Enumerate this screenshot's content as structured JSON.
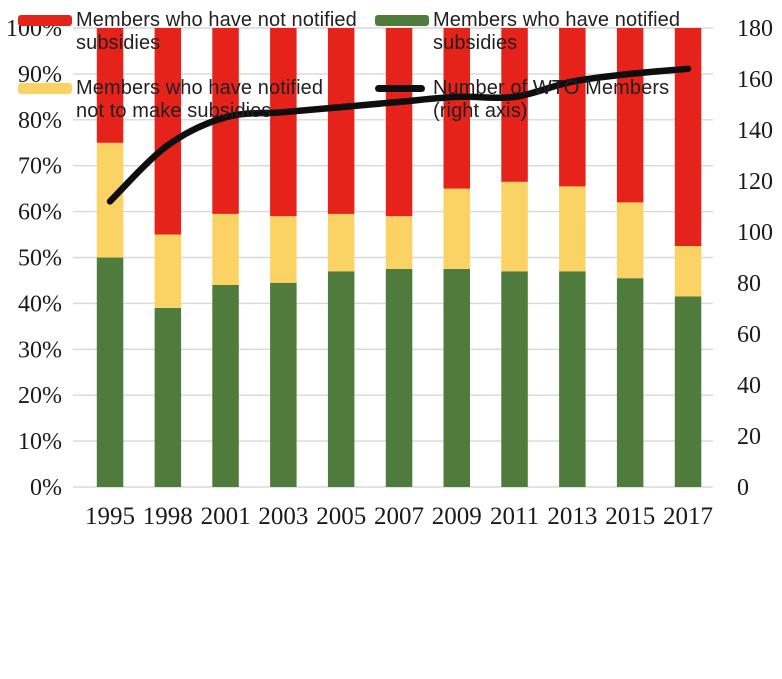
{
  "colors": {
    "red": "#e5231b",
    "yellow": "#fad364",
    "green": "#4f7b3c",
    "line_black": "#0e0e0e",
    "grid": "#d8d8d8",
    "axis_text": "#1a1a1a",
    "legend_text": "#231f20",
    "background": "#ffffff"
  },
  "chart_data": {
    "type": "bar",
    "subtype": "stacked-100pct-with-line-overlay",
    "title": "",
    "xlabel": "",
    "ylabel": "",
    "grid": true,
    "legend_position": "bottom",
    "categories": [
      "1995",
      "1998",
      "2001",
      "2003",
      "2005",
      "2007",
      "2009",
      "2011",
      "2013",
      "2015",
      "2017"
    ],
    "series": [
      {
        "name": "Members who have notified subsidies",
        "color_key": "green",
        "axis": "left",
        "values": [
          50,
          39,
          44,
          44.5,
          47,
          47.5,
          47.5,
          47,
          47,
          45.5,
          41.5
        ]
      },
      {
        "name": "Members who have notified not to make subsidies",
        "color_key": "yellow",
        "axis": "left",
        "values": [
          25,
          16,
          15.5,
          14.5,
          12.5,
          11.5,
          17.5,
          19.5,
          18.5,
          16.5,
          11
        ]
      },
      {
        "name": "Members who have not notified subsidies",
        "color_key": "red",
        "axis": "left",
        "values": [
          25,
          45,
          40.5,
          41,
          40.5,
          41,
          35,
          33.5,
          34.5,
          38,
          47.5
        ]
      }
    ],
    "line_series": {
      "name": "Number of WTO Members (right axis)",
      "color_key": "line_black",
      "axis": "right",
      "values": [
        112,
        134,
        145,
        147,
        149,
        151,
        153,
        153,
        159,
        162,
        164
      ]
    },
    "left_axis": {
      "min": 0,
      "max": 100,
      "step": 10,
      "format": "percent",
      "tick_labels": [
        "100%",
        "90%",
        "80%",
        "70%",
        "60%",
        "50%",
        "40%",
        "30%",
        "20%",
        "10%",
        "0%"
      ]
    },
    "right_axis": {
      "min": 0,
      "max": 180,
      "step": 20,
      "tick_labels": [
        "180",
        "160",
        "140",
        "120",
        "100",
        "80",
        "60",
        "40",
        "20",
        "0"
      ]
    }
  },
  "legend": {
    "items": [
      {
        "key": "red",
        "swatch": "bar",
        "line1": "Members who have not notified",
        "line2": "subsidies"
      },
      {
        "key": "green",
        "swatch": "bar",
        "line1": "Members who have notified",
        "line2": "subsidies"
      },
      {
        "key": "yellow",
        "swatch": "bar",
        "line1": "Members who have notified",
        "line2": "not to make subsidies"
      },
      {
        "key": "line_black",
        "swatch": "line",
        "line1": "Number of WTO Members",
        "line2": "(right axis)"
      }
    ]
  }
}
